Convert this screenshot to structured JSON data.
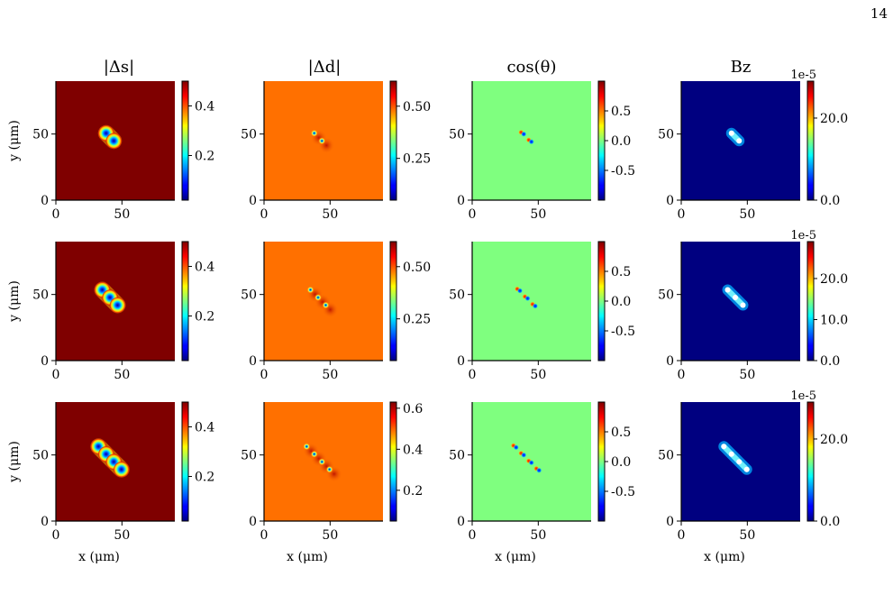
{
  "page_number": "14",
  "column_titles": [
    "|Δs|",
    "|Δd|",
    "cos(θ)",
    "Bz"
  ],
  "y_axis_label": "y (μm)",
  "x_axis_label": "x (μm)",
  "colors": {
    "deltas_background": "#7f0000",
    "deltad_background": "#ff7000",
    "cos_background": "#7fff7f",
    "bz_background": "#000080"
  },
  "chart_data": {
    "type": "heatmap",
    "layout": "3 rows x 4 columns of heatmap panels",
    "x_ticks": [
      "0",
      "50"
    ],
    "y_ticks": [
      "0",
      "50"
    ],
    "xlim": [
      0,
      90
    ],
    "ylim": [
      0,
      90
    ],
    "colormap": "jet",
    "rows": [
      {
        "vortex_count": 2,
        "panels": [
          {
            "quantity": "|Δs|",
            "colorbar_ticks": [
              "0.2",
              "0.4"
            ],
            "colorbar_tick_values": [
              0.2,
              0.4
            ],
            "colorbar_range": [
              0.02,
              0.5
            ]
          },
          {
            "quantity": "|Δd|",
            "colorbar_ticks": [
              "0.25",
              "0.50"
            ],
            "colorbar_tick_values": [
              0.25,
              0.5
            ],
            "colorbar_range": [
              0.05,
              0.62
            ]
          },
          {
            "quantity": "cos(θ)",
            "colorbar_ticks": [
              "-0.5",
              "0.0",
              "0.5"
            ],
            "colorbar_tick_values": [
              -0.5,
              0.0,
              0.5
            ],
            "colorbar_range": [
              -1,
              1
            ]
          },
          {
            "quantity": "Bz",
            "colorbar_ticks": [
              "0.0",
              "20.0"
            ],
            "colorbar_tick_values": [
              0,
              20
            ],
            "colorbar_range": [
              0,
              29
            ],
            "exponent": "1e-5"
          }
        ]
      },
      {
        "vortex_count": 3,
        "panels": [
          {
            "quantity": "|Δs|",
            "colorbar_ticks": [
              "0.2",
              "0.4"
            ],
            "colorbar_tick_values": [
              0.2,
              0.4
            ],
            "colorbar_range": [
              0.02,
              0.5
            ]
          },
          {
            "quantity": "|Δd|",
            "colorbar_ticks": [
              "0.25",
              "0.50"
            ],
            "colorbar_tick_values": [
              0.25,
              0.5
            ],
            "colorbar_range": [
              0.05,
              0.62
            ]
          },
          {
            "quantity": "cos(θ)",
            "colorbar_ticks": [
              "-0.5",
              "0.0",
              "0.5"
            ],
            "colorbar_tick_values": [
              -0.5,
              0.0,
              0.5
            ],
            "colorbar_range": [
              -1,
              1
            ]
          },
          {
            "quantity": "Bz",
            "colorbar_ticks": [
              "0.0",
              "10.0",
              "20.0"
            ],
            "colorbar_tick_values": [
              0,
              10,
              20
            ],
            "colorbar_range": [
              0,
              29
            ],
            "exponent": "1e-5"
          }
        ]
      },
      {
        "vortex_count": 4,
        "panels": [
          {
            "quantity": "|Δs|",
            "colorbar_ticks": [
              "0.2",
              "0.4"
            ],
            "colorbar_tick_values": [
              0.2,
              0.4
            ],
            "colorbar_range": [
              0.02,
              0.5
            ]
          },
          {
            "quantity": "|Δd|",
            "colorbar_ticks": [
              "0.2",
              "0.4",
              "0.6"
            ],
            "colorbar_tick_values": [
              0.2,
              0.4,
              0.6
            ],
            "colorbar_range": [
              0.05,
              0.63
            ]
          },
          {
            "quantity": "cos(θ)",
            "colorbar_ticks": [
              "-0.5",
              "0.0",
              "0.5"
            ],
            "colorbar_tick_values": [
              -0.5,
              0.0,
              0.5
            ],
            "colorbar_range": [
              -1,
              1
            ]
          },
          {
            "quantity": "Bz",
            "colorbar_ticks": [
              "0.0",
              "20.0"
            ],
            "colorbar_tick_values": [
              0,
              20
            ],
            "colorbar_range": [
              0,
              29
            ],
            "exponent": "1e-5"
          }
        ]
      }
    ]
  }
}
